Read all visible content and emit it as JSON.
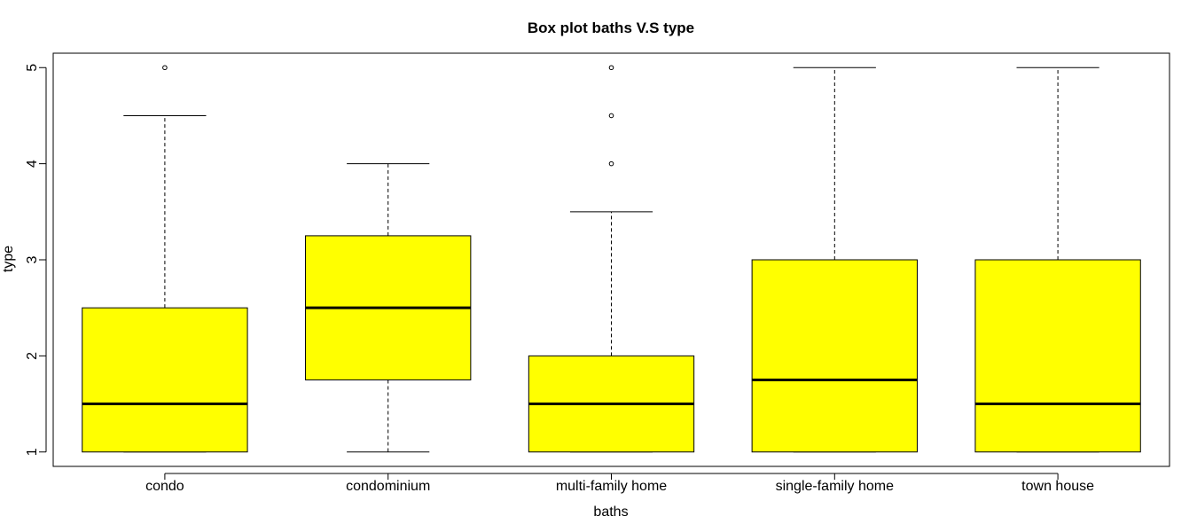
{
  "chart_data": {
    "type": "boxplot",
    "title": "Box plot baths V.S type",
    "xlabel": "baths",
    "ylabel": "type",
    "ylim": [
      0.85,
      5.15
    ],
    "yticks": [
      1,
      2,
      3,
      4,
      5
    ],
    "categories": [
      "condo",
      "condominium",
      "multi-family home",
      "single-family home",
      "town house"
    ],
    "boxes": [
      {
        "category": "condo",
        "whisker_low": 1,
        "q1": 1,
        "median": 1.5,
        "q3": 2.5,
        "whisker_high": 4.5,
        "outliers": [
          5
        ]
      },
      {
        "category": "condominium",
        "whisker_low": 1,
        "q1": 1.75,
        "median": 2.5,
        "q3": 3.25,
        "whisker_high": 4,
        "outliers": []
      },
      {
        "category": "multi-family home",
        "whisker_low": 1,
        "q1": 1,
        "median": 1.5,
        "q3": 2,
        "whisker_high": 3.5,
        "outliers": [
          4,
          4.5,
          5
        ]
      },
      {
        "category": "single-family home",
        "whisker_low": 1,
        "q1": 1,
        "median": 1.75,
        "q3": 3,
        "whisker_high": 5,
        "outliers": []
      },
      {
        "category": "town house",
        "whisker_low": 1,
        "q1": 1,
        "median": 1.5,
        "q3": 3,
        "whisker_high": 5,
        "outliers": []
      }
    ],
    "colors": {
      "box_fill": "#ffff00",
      "stroke": "#000000",
      "background": "#ffffff"
    }
  }
}
